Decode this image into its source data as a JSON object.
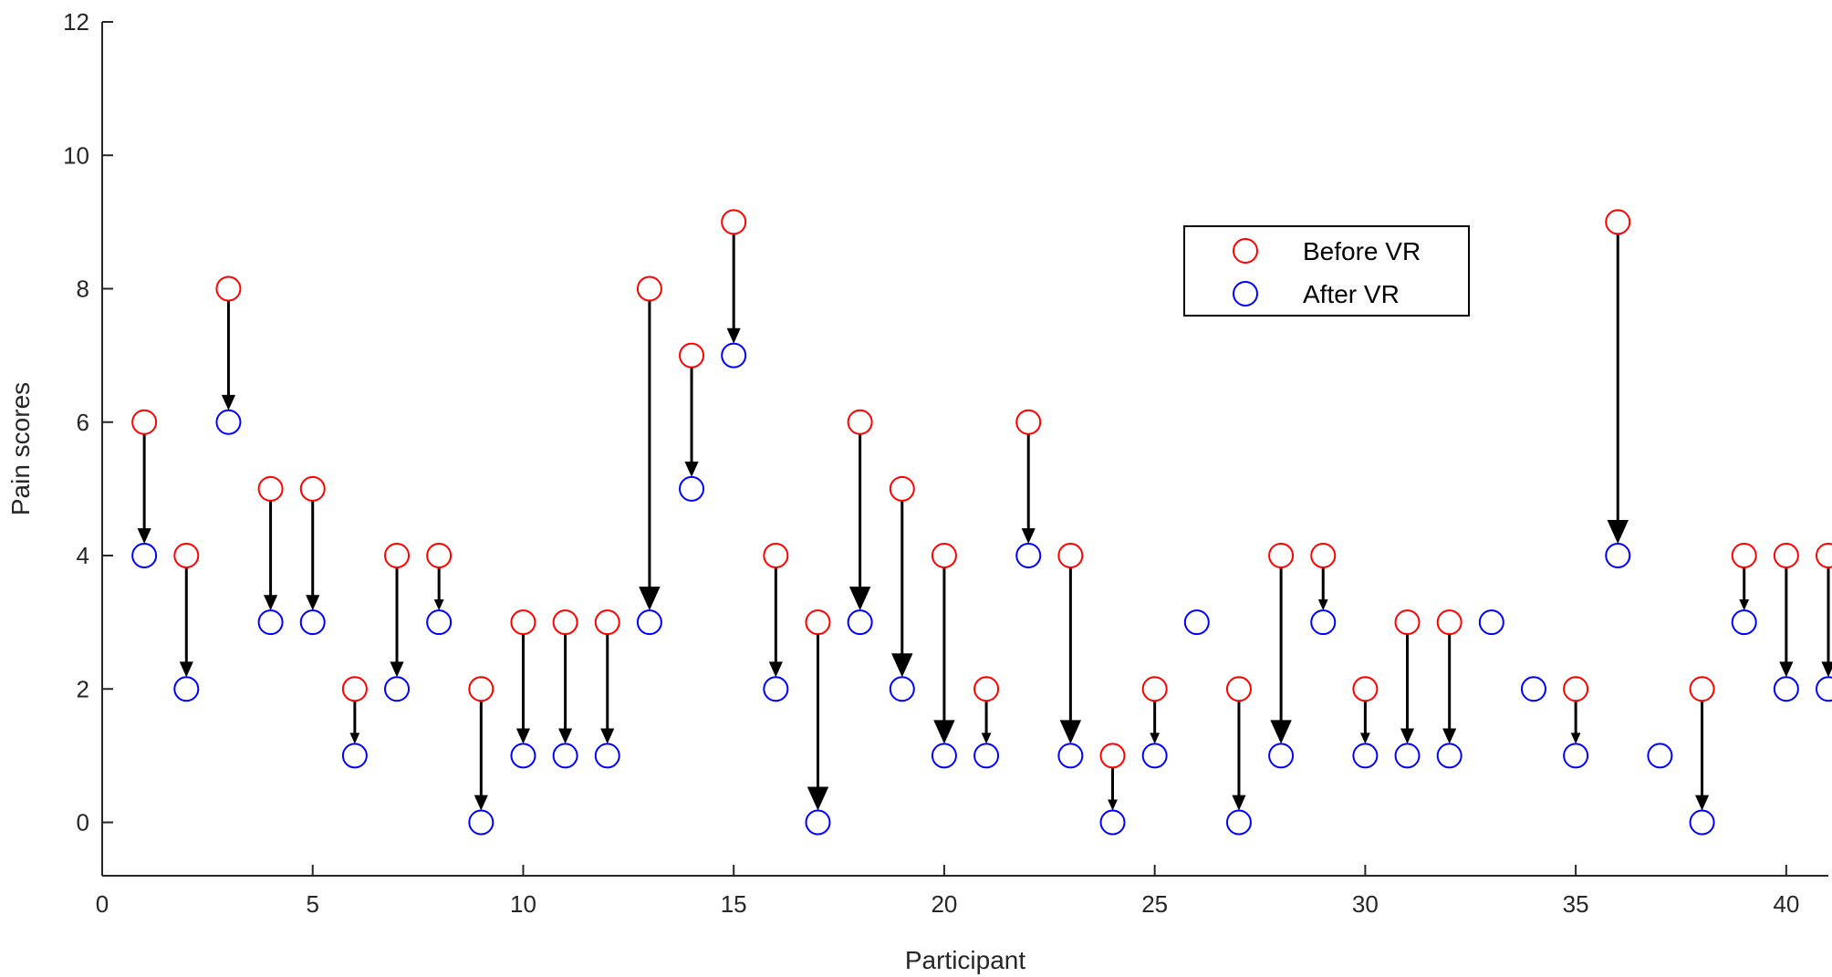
{
  "chart_data": {
    "type": "scatter",
    "title": "",
    "xlabel": "Participant",
    "ylabel": "Pain scores",
    "xlim": [
      0,
      41
    ],
    "ylim": [
      -0.8,
      12
    ],
    "xticks": [
      0,
      5,
      10,
      15,
      20,
      25,
      30,
      35,
      40
    ],
    "yticks": [
      0,
      2,
      4,
      6,
      8,
      10,
      12
    ],
    "grid": false,
    "legend_position": "upper-right-center",
    "series": [
      {
        "name": "Before VR",
        "color": "#ff0000",
        "marker": "circle-open",
        "points": [
          [
            1,
            6
          ],
          [
            2,
            4
          ],
          [
            3,
            8
          ],
          [
            4,
            5
          ],
          [
            5,
            5
          ],
          [
            6,
            2
          ],
          [
            7,
            4
          ],
          [
            8,
            4
          ],
          [
            9,
            2
          ],
          [
            10,
            3
          ],
          [
            11,
            3
          ],
          [
            12,
            3
          ],
          [
            13,
            8
          ],
          [
            14,
            7
          ],
          [
            15,
            9
          ],
          [
            16,
            4
          ],
          [
            17,
            3
          ],
          [
            18,
            6
          ],
          [
            19,
            5
          ],
          [
            20,
            4
          ],
          [
            21,
            2
          ],
          [
            22,
            6
          ],
          [
            23,
            4
          ],
          [
            24,
            1
          ],
          [
            25,
            2
          ],
          [
            27,
            2
          ],
          [
            28,
            4
          ],
          [
            29,
            4
          ],
          [
            30,
            2
          ],
          [
            31,
            3
          ],
          [
            32,
            3
          ],
          [
            35,
            2
          ],
          [
            36,
            9
          ],
          [
            38,
            2
          ],
          [
            39,
            4
          ],
          [
            40,
            4
          ],
          [
            41,
            4
          ]
        ]
      },
      {
        "name": "After VR",
        "color": "#0000ff",
        "marker": "circle-open",
        "points": [
          [
            1,
            4
          ],
          [
            2,
            2
          ],
          [
            3,
            6
          ],
          [
            4,
            3
          ],
          [
            5,
            3
          ],
          [
            6,
            1
          ],
          [
            7,
            2
          ],
          [
            8,
            3
          ],
          [
            9,
            0
          ],
          [
            10,
            1
          ],
          [
            11,
            1
          ],
          [
            12,
            1
          ],
          [
            13,
            3
          ],
          [
            14,
            5
          ],
          [
            15,
            7
          ],
          [
            16,
            2
          ],
          [
            17,
            0
          ],
          [
            18,
            3
          ],
          [
            19,
            2
          ],
          [
            20,
            1
          ],
          [
            21,
            1
          ],
          [
            22,
            4
          ],
          [
            23,
            1
          ],
          [
            24,
            0
          ],
          [
            25,
            1
          ],
          [
            26,
            3
          ],
          [
            27,
            0
          ],
          [
            28,
            1
          ],
          [
            29,
            3
          ],
          [
            30,
            1
          ],
          [
            31,
            1
          ],
          [
            32,
            1
          ],
          [
            33,
            3
          ],
          [
            34,
            2
          ],
          [
            35,
            1
          ],
          [
            36,
            4
          ],
          [
            37,
            1
          ],
          [
            38,
            0
          ],
          [
            39,
            3
          ],
          [
            40,
            2
          ],
          [
            41,
            2
          ]
        ]
      }
    ],
    "arrows": {
      "description": "Arrow from Before VR score to After VR score for each participant",
      "color": "#000000"
    }
  }
}
